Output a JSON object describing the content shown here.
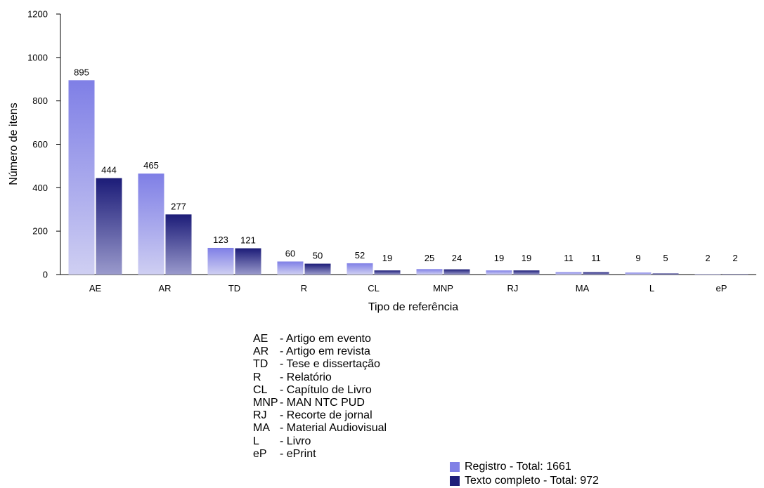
{
  "chart_data": {
    "type": "bar",
    "categories": [
      "AE",
      "AR",
      "TD",
      "R",
      "CL",
      "MNP",
      "RJ",
      "MA",
      "L",
      "eP"
    ],
    "series": [
      {
        "name": "Registro - Total: 1661",
        "values": [
          895,
          465,
          123,
          60,
          52,
          25,
          19,
          11,
          9,
          2
        ],
        "color": "#8080e6"
      },
      {
        "name": "Texto completo - Total: 972",
        "values": [
          444,
          277,
          121,
          50,
          19,
          24,
          19,
          11,
          5,
          2
        ],
        "color": "#1f1f7a"
      }
    ],
    "xlabel": "Tipo de referência",
    "ylabel": "Número de itens",
    "ylim": [
      0,
      1200
    ],
    "yticks": [
      0,
      200,
      400,
      600,
      800,
      1000,
      1200
    ],
    "grid": false,
    "legend_placement": "bottom-right"
  },
  "abbreviations": [
    {
      "code": "AE",
      "desc": "- Artigo em evento"
    },
    {
      "code": "AR",
      "desc": "- Artigo em revista"
    },
    {
      "code": "TD",
      "desc": "- Tese e dissertação"
    },
    {
      "code": "R",
      "desc": "- Relatório"
    },
    {
      "code": "CL",
      "desc": "- Capítulo de Livro"
    },
    {
      "code": "MNP",
      "desc": "- MAN NTC PUD"
    },
    {
      "code": "RJ",
      "desc": "- Recorte de jornal"
    },
    {
      "code": "MA",
      "desc": "- Material Audiovisual"
    },
    {
      "code": "L",
      "desc": "- Livro"
    },
    {
      "code": "eP",
      "desc": "- ePrint"
    }
  ]
}
